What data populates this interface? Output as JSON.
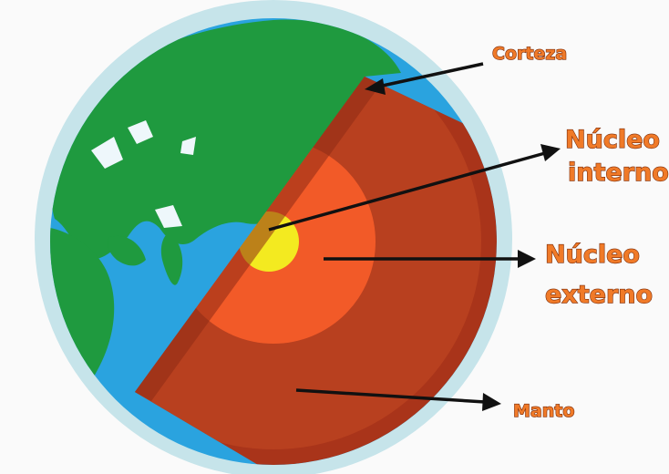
{
  "labels": {
    "crust": "Corteza",
    "inner_core_line1": "Núcleo",
    "inner_core_line2": "interno",
    "outer_core_line1": "Núcleo",
    "outer_core_line2": "externo",
    "mantle": "Manto"
  },
  "colors": {
    "label_text": "#f07a28",
    "atmosphere": "#c6e4ea",
    "ocean": "#2aa3df",
    "land": "#1f9a3f",
    "crust": "#a9341a",
    "mantle": "#b8401f",
    "outer_core": "#f25a28",
    "inner_core": "#f3ea20",
    "arrow": "#111111"
  }
}
